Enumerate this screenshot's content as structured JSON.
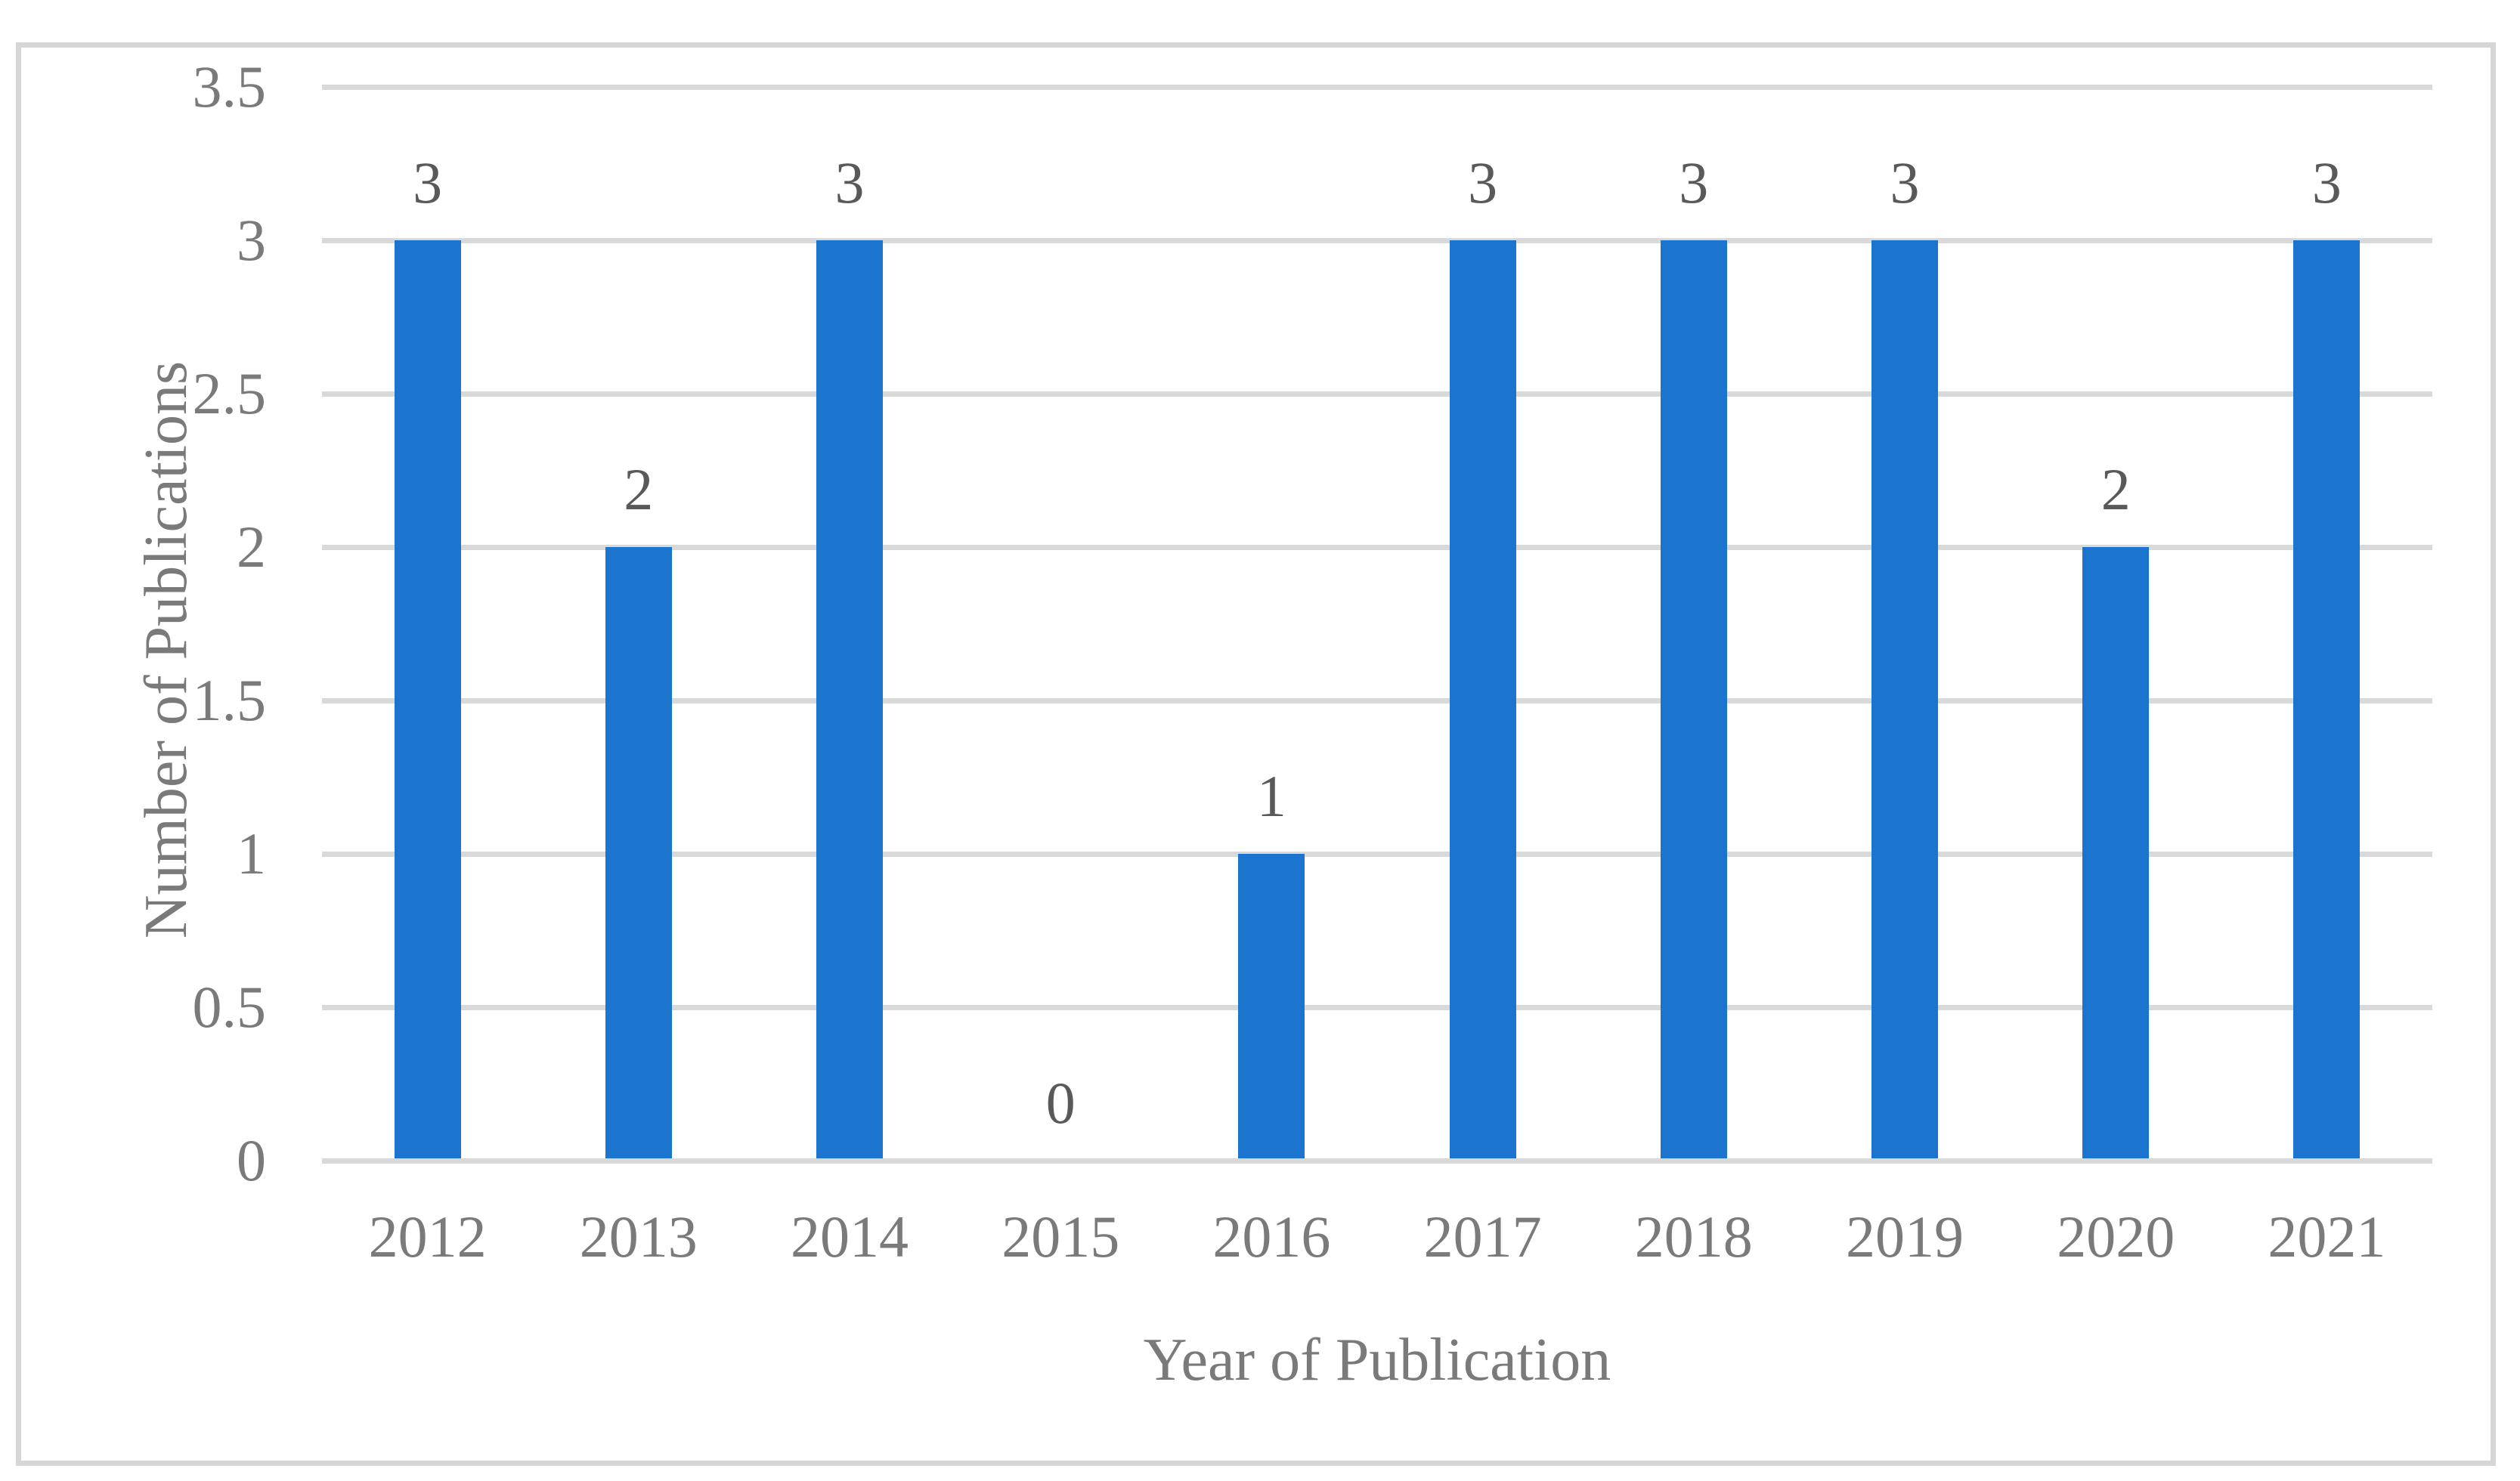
{
  "chart_data": {
    "type": "bar",
    "title": "",
    "xlabel": "Year of Publication",
    "ylabel": "Number of Publications",
    "categories": [
      "2012",
      "2013",
      "2014",
      "2015",
      "2016",
      "2017",
      "2018",
      "2019",
      "2020",
      "2021"
    ],
    "values": [
      3,
      2,
      3,
      0,
      1,
      3,
      3,
      3,
      2,
      3
    ],
    "data_labels_shown": true,
    "ylim": [
      0,
      3.5
    ],
    "yticks": [
      0,
      0.5,
      1,
      1.5,
      2,
      2.5,
      3,
      3.5
    ],
    "grid": "horizontal",
    "legend": "none",
    "colors": {
      "bar_fill": "#1B74CE",
      "gridline": "#D9D9D9",
      "axis_line": "#D9D9D9",
      "frame_border": "#D6D6D6",
      "axis_text": "#7A7A7A",
      "data_label_text": "#595959",
      "background": "#FFFFFF"
    }
  }
}
